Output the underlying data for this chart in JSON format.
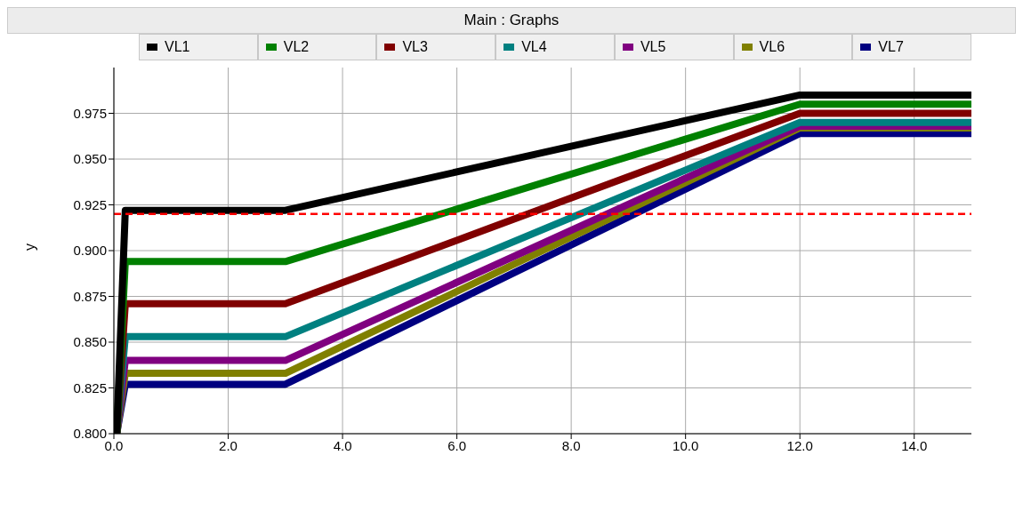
{
  "chart_data": {
    "type": "line",
    "title": "Main : Graphs",
    "ylabel": "y",
    "xlim": [
      0,
      15
    ],
    "ylim": [
      0.8,
      1.0
    ],
    "xticks": [
      {
        "value": 0,
        "label": "0.0"
      },
      {
        "value": 2,
        "label": "2.0"
      },
      {
        "value": 4,
        "label": "4.0"
      },
      {
        "value": 6,
        "label": "6.0"
      },
      {
        "value": 8,
        "label": "8.0"
      },
      {
        "value": 10,
        "label": "10.0"
      },
      {
        "value": 12,
        "label": "12.0"
      },
      {
        "value": 14,
        "label": "14.0"
      }
    ],
    "yticks": [
      {
        "value": 0.8,
        "label": "0.800"
      },
      {
        "value": 0.825,
        "label": "0.825"
      },
      {
        "value": 0.85,
        "label": "0.850"
      },
      {
        "value": 0.875,
        "label": "0.875"
      },
      {
        "value": 0.9,
        "label": "0.900"
      },
      {
        "value": 0.925,
        "label": "0.925"
      },
      {
        "value": 0.95,
        "label": "0.950"
      },
      {
        "value": 0.975,
        "label": "0.975"
      }
    ],
    "grid": true,
    "legend": "top",
    "marker": "none",
    "line_style": "solid",
    "x": [
      0.05,
      0.2,
      3.0,
      12.0,
      15.0
    ],
    "series": [
      {
        "name": "VL1",
        "color": "#000000",
        "values": [
          0.8,
          0.922,
          0.922,
          0.985,
          0.985
        ]
      },
      {
        "name": "VL2",
        "color": "#008000",
        "values": [
          0.8,
          0.894,
          0.894,
          0.98,
          0.98
        ]
      },
      {
        "name": "VL3",
        "color": "#800000",
        "values": [
          0.8,
          0.871,
          0.871,
          0.975,
          0.975
        ]
      },
      {
        "name": "VL4",
        "color": "#008080",
        "values": [
          0.8,
          0.853,
          0.853,
          0.97,
          0.97
        ]
      },
      {
        "name": "VL5",
        "color": "#800080",
        "values": [
          0.8,
          0.84,
          0.84,
          0.968,
          0.968
        ]
      },
      {
        "name": "VL6",
        "color": "#808000",
        "values": [
          0.8,
          0.833,
          0.833,
          0.967,
          0.967
        ]
      },
      {
        "name": "VL7",
        "color": "#000080",
        "values": [
          0.8,
          0.827,
          0.827,
          0.964,
          0.964
        ]
      }
    ],
    "ref_lines": [
      {
        "axis": "y",
        "value": 0.92,
        "color": "#ff0000",
        "line_style": "dashed"
      }
    ]
  }
}
